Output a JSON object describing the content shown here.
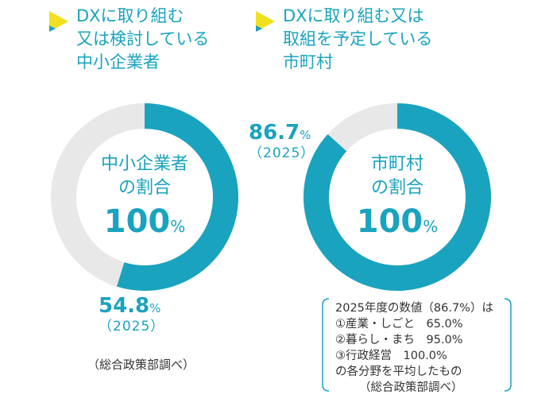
{
  "colors": {
    "accent": "#1aa3bf",
    "track": "#e8e8e8",
    "arrow": "#f0e020",
    "text": "#333333"
  },
  "headings": {
    "left": {
      "icon": "yellow-triangle-icon",
      "lines": [
        "DXに取り組む",
        "又は検討している",
        "中小企業者"
      ]
    },
    "right": {
      "icon": "yellow-triangle-icon",
      "lines": [
        "DXに取り組む又は",
        "取組を予定している",
        "市町村"
      ]
    }
  },
  "chart_data": [
    {
      "type": "pie",
      "title": "DXに取り組む又は検討している中小企業者",
      "series": [
        {
          "name": "2025",
          "values": [
            54.8,
            45.2
          ]
        }
      ],
      "values": [
        54.8,
        45.2
      ],
      "value_label": "54.8",
      "unit": "%",
      "year_label": "（2025）",
      "center": {
        "line1": "中小企業者",
        "line2": "の割合",
        "target_value": "100",
        "target_unit": "%"
      },
      "source": "（総合政策部調べ）"
    },
    {
      "type": "pie",
      "title": "DXに取り組む又は取組を予定している市町村",
      "series": [
        {
          "name": "2025",
          "values": [
            86.7,
            13.3
          ]
        }
      ],
      "values": [
        86.7,
        13.3
      ],
      "value_label": "86.7",
      "unit": "%",
      "year_label": "（2025）",
      "center": {
        "line1": "市町村",
        "line2": "の割合",
        "target_value": "100",
        "target_unit": "%"
      },
      "note": {
        "lines": [
          "2025年度の数値（86.7%）は",
          "①産業・しごと　65.0%",
          "②暮らし・まち　95.0%",
          "③行政経営　100.0%",
          "の各分野を平均したもの"
        ],
        "source": "（総合政策部調べ）"
      }
    }
  ]
}
